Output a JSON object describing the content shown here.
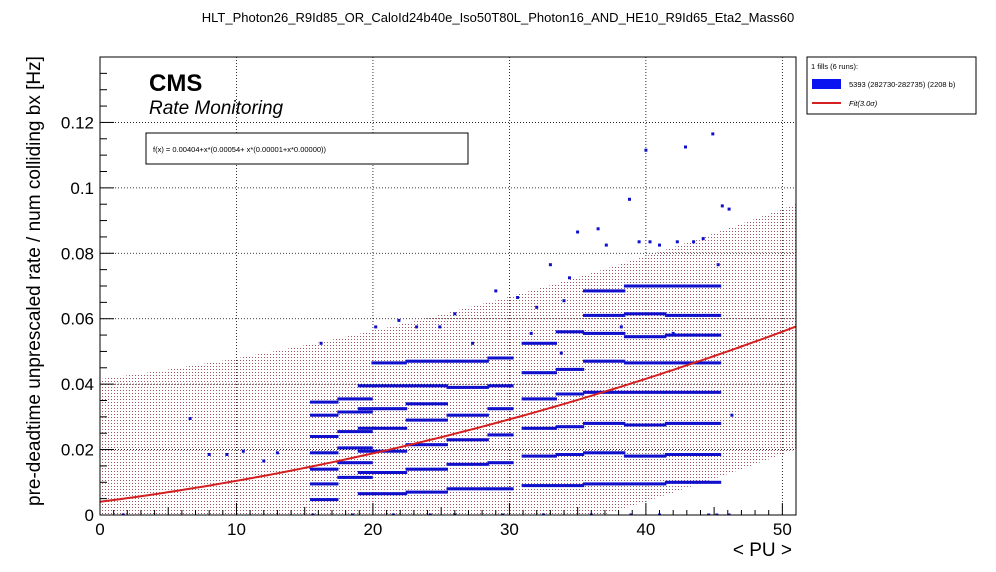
{
  "title": "HLT_Photon26_R9Id85_OR_CaloId24b40e_Iso50T80L_Photon16_AND_HE10_R9Id65_Eta2_Mass60",
  "colors": {
    "points": "#1010cc",
    "fit": "#d42020",
    "band": "#a05060",
    "legend_box": "#0a14f0"
  },
  "chart_data": {
    "type": "scatter",
    "title": "HLT_Photon26_R9Id85_OR_CaloId24b40e_Iso50T80L_Photon16_AND_HE10_R9Id65_Eta2_Mass60",
    "cms_label": "CMS",
    "subtitle": "Rate Monitoring",
    "xlabel": "< PU >",
    "ylabel": "pre-deadtime unprescaled rate / num colliding bx [Hz]",
    "xlim": [
      0,
      51
    ],
    "ylim": [
      0,
      0.14
    ],
    "x_ticks": [
      0,
      10,
      20,
      30,
      40,
      50
    ],
    "x_tick_labels": [
      "0",
      "10",
      "20",
      "30",
      "40",
      "50"
    ],
    "y_ticks": [
      0,
      0.02,
      0.04,
      0.06,
      0.08,
      0.1,
      0.12
    ],
    "y_tick_labels": [
      "0",
      "0.02",
      "0.04",
      "0.06",
      "0.08",
      "0.1",
      "0.12"
    ],
    "grid": true,
    "fit_label": "f(x) = 0.00404+x*(0.00054+ x*(0.00001+x*0.00000))",
    "fit": {
      "coeffs": [
        0.00404,
        0.00054,
        1e-05
      ],
      "band_sigma": 3.0,
      "band_halfwidth": 0.0375
    },
    "legend": {
      "position": "right",
      "header": "1 fills (6 runs):",
      "entries": [
        {
          "label": "5393 (282730-282735) (2208 b)",
          "type": "box"
        },
        {
          "label": "Fit(3.0σ)",
          "type": "line"
        }
      ]
    },
    "series": [
      {
        "name": "5393 (282730-282735) (2208 b)",
        "isolated_points": [
          [
            6.6,
            0.0295
          ],
          [
            8.0,
            0.0185
          ],
          [
            9.3,
            0.0185
          ],
          [
            10.5,
            0.0195
          ],
          [
            12.0,
            0.0165
          ],
          [
            13.0,
            0.019
          ],
          [
            16.2,
            0.0525
          ],
          [
            20.2,
            0.0575
          ],
          [
            21.9,
            0.0595
          ],
          [
            23.2,
            0.0575
          ],
          [
            24.9,
            0.0575
          ],
          [
            26.0,
            0.0615
          ],
          [
            29.0,
            0.0685
          ],
          [
            30.6,
            0.0665
          ],
          [
            32.0,
            0.0635
          ],
          [
            33.0,
            0.0765
          ],
          [
            34.0,
            0.0655
          ],
          [
            34.4,
            0.0725
          ],
          [
            35.0,
            0.0865
          ],
          [
            36.5,
            0.0875
          ],
          [
            37.1,
            0.0825
          ],
          [
            38.2,
            0.0575
          ],
          [
            38.8,
            0.0965
          ],
          [
            39.5,
            0.0835
          ],
          [
            40.0,
            0.1115
          ],
          [
            40.3,
            0.0835
          ],
          [
            41.0,
            0.0825
          ],
          [
            42.3,
            0.0835
          ],
          [
            42.9,
            0.1125
          ],
          [
            43.5,
            0.0835
          ],
          [
            44.2,
            0.0845
          ],
          [
            44.9,
            0.1165
          ],
          [
            45.3,
            0.0765
          ],
          [
            45.6,
            0.0945
          ],
          [
            46.1,
            0.0935
          ],
          [
            46.3,
            0.0305
          ],
          [
            27.3,
            0.0525
          ],
          [
            31.6,
            0.0555
          ],
          [
            33.8,
            0.0495
          ],
          [
            42.0,
            0.0555
          ]
        ],
        "bands": [
          [
            15.5,
            17.5,
            0.0047
          ],
          [
            15.5,
            17.5,
            0.0095
          ],
          [
            15.5,
            17.5,
            0.014
          ],
          [
            15.5,
            17.5,
            0.019
          ],
          [
            15.5,
            17.5,
            0.024
          ],
          [
            15.5,
            17.5,
            0.0305
          ],
          [
            15.5,
            17.5,
            0.0345
          ],
          [
            17.5,
            20.0,
            0.0115
          ],
          [
            17.5,
            20.0,
            0.016
          ],
          [
            17.5,
            20.0,
            0.0205
          ],
          [
            17.5,
            20.0,
            0.0255
          ],
          [
            17.5,
            20.0,
            0.0315
          ],
          [
            17.5,
            20.0,
            0.0355
          ],
          [
            19.0,
            22.5,
            0.0065
          ],
          [
            19.0,
            22.5,
            0.013
          ],
          [
            19.0,
            22.5,
            0.0195
          ],
          [
            19.0,
            22.5,
            0.0265
          ],
          [
            19.0,
            22.5,
            0.0325
          ],
          [
            19.0,
            22.5,
            0.0395
          ],
          [
            20.0,
            22.5,
            0.0465
          ],
          [
            22.5,
            25.5,
            0.007
          ],
          [
            22.5,
            25.5,
            0.014
          ],
          [
            22.5,
            25.5,
            0.0215
          ],
          [
            22.5,
            25.5,
            0.029
          ],
          [
            22.5,
            25.5,
            0.034
          ],
          [
            22.5,
            25.5,
            0.0395
          ],
          [
            22.5,
            25.5,
            0.047
          ],
          [
            25.5,
            28.5,
            0.008
          ],
          [
            25.5,
            28.5,
            0.0155
          ],
          [
            25.5,
            28.5,
            0.023
          ],
          [
            25.5,
            28.5,
            0.0305
          ],
          [
            25.5,
            28.5,
            0.039
          ],
          [
            25.5,
            28.5,
            0.047
          ],
          [
            28.5,
            30.2,
            0.008
          ],
          [
            28.5,
            30.2,
            0.016
          ],
          [
            28.5,
            30.2,
            0.0245
          ],
          [
            28.5,
            30.2,
            0.0325
          ],
          [
            28.5,
            30.2,
            0.0395
          ],
          [
            28.5,
            30.2,
            0.048
          ],
          [
            31.0,
            33.5,
            0.009
          ],
          [
            31.0,
            33.5,
            0.018
          ],
          [
            31.0,
            33.5,
            0.0265
          ],
          [
            31.0,
            33.5,
            0.0355
          ],
          [
            31.0,
            33.5,
            0.0435
          ],
          [
            31.0,
            33.5,
            0.0525
          ],
          [
            33.5,
            35.5,
            0.009
          ],
          [
            33.5,
            35.5,
            0.0185
          ],
          [
            33.5,
            35.5,
            0.027
          ],
          [
            33.5,
            35.5,
            0.037
          ],
          [
            33.5,
            35.5,
            0.0445
          ],
          [
            33.5,
            35.5,
            0.056
          ],
          [
            35.5,
            38.5,
            0.0095
          ],
          [
            35.5,
            38.5,
            0.019
          ],
          [
            35.5,
            38.5,
            0.028
          ],
          [
            35.5,
            38.5,
            0.0375
          ],
          [
            35.5,
            38.5,
            0.047
          ],
          [
            35.5,
            38.5,
            0.0555
          ],
          [
            35.5,
            38.5,
            0.061
          ],
          [
            35.5,
            38.5,
            0.0685
          ],
          [
            38.5,
            41.5,
            0.0095
          ],
          [
            38.5,
            41.5,
            0.018
          ],
          [
            38.5,
            41.5,
            0.0275
          ],
          [
            38.5,
            41.5,
            0.0375
          ],
          [
            38.5,
            41.5,
            0.0465
          ],
          [
            38.5,
            41.5,
            0.0545
          ],
          [
            38.5,
            41.5,
            0.0615
          ],
          [
            38.5,
            41.5,
            0.07
          ],
          [
            41.5,
            45.5,
            0.01
          ],
          [
            41.5,
            45.5,
            0.0185
          ],
          [
            41.5,
            45.5,
            0.028
          ],
          [
            41.5,
            45.5,
            0.0375
          ],
          [
            41.5,
            45.5,
            0.0465
          ],
          [
            41.5,
            45.5,
            0.055
          ],
          [
            41.5,
            45.5,
            0.061
          ],
          [
            41.5,
            45.5,
            0.07
          ]
        ],
        "baseline_points": [
          [
            1.7,
            0.0
          ],
          [
            15.6,
            0.0
          ],
          [
            18.5,
            0.0
          ],
          [
            21.5,
            0.0
          ],
          [
            24.2,
            0.0
          ],
          [
            26.0,
            0.0
          ],
          [
            29.5,
            0.0
          ],
          [
            32.5,
            0.0
          ],
          [
            36.0,
            0.0
          ],
          [
            38.9,
            0.0
          ],
          [
            41.0,
            0.0
          ],
          [
            44.6,
            0.0
          ],
          [
            45.2,
            0.0
          ],
          [
            46.1,
            0.0
          ]
        ]
      }
    ]
  }
}
